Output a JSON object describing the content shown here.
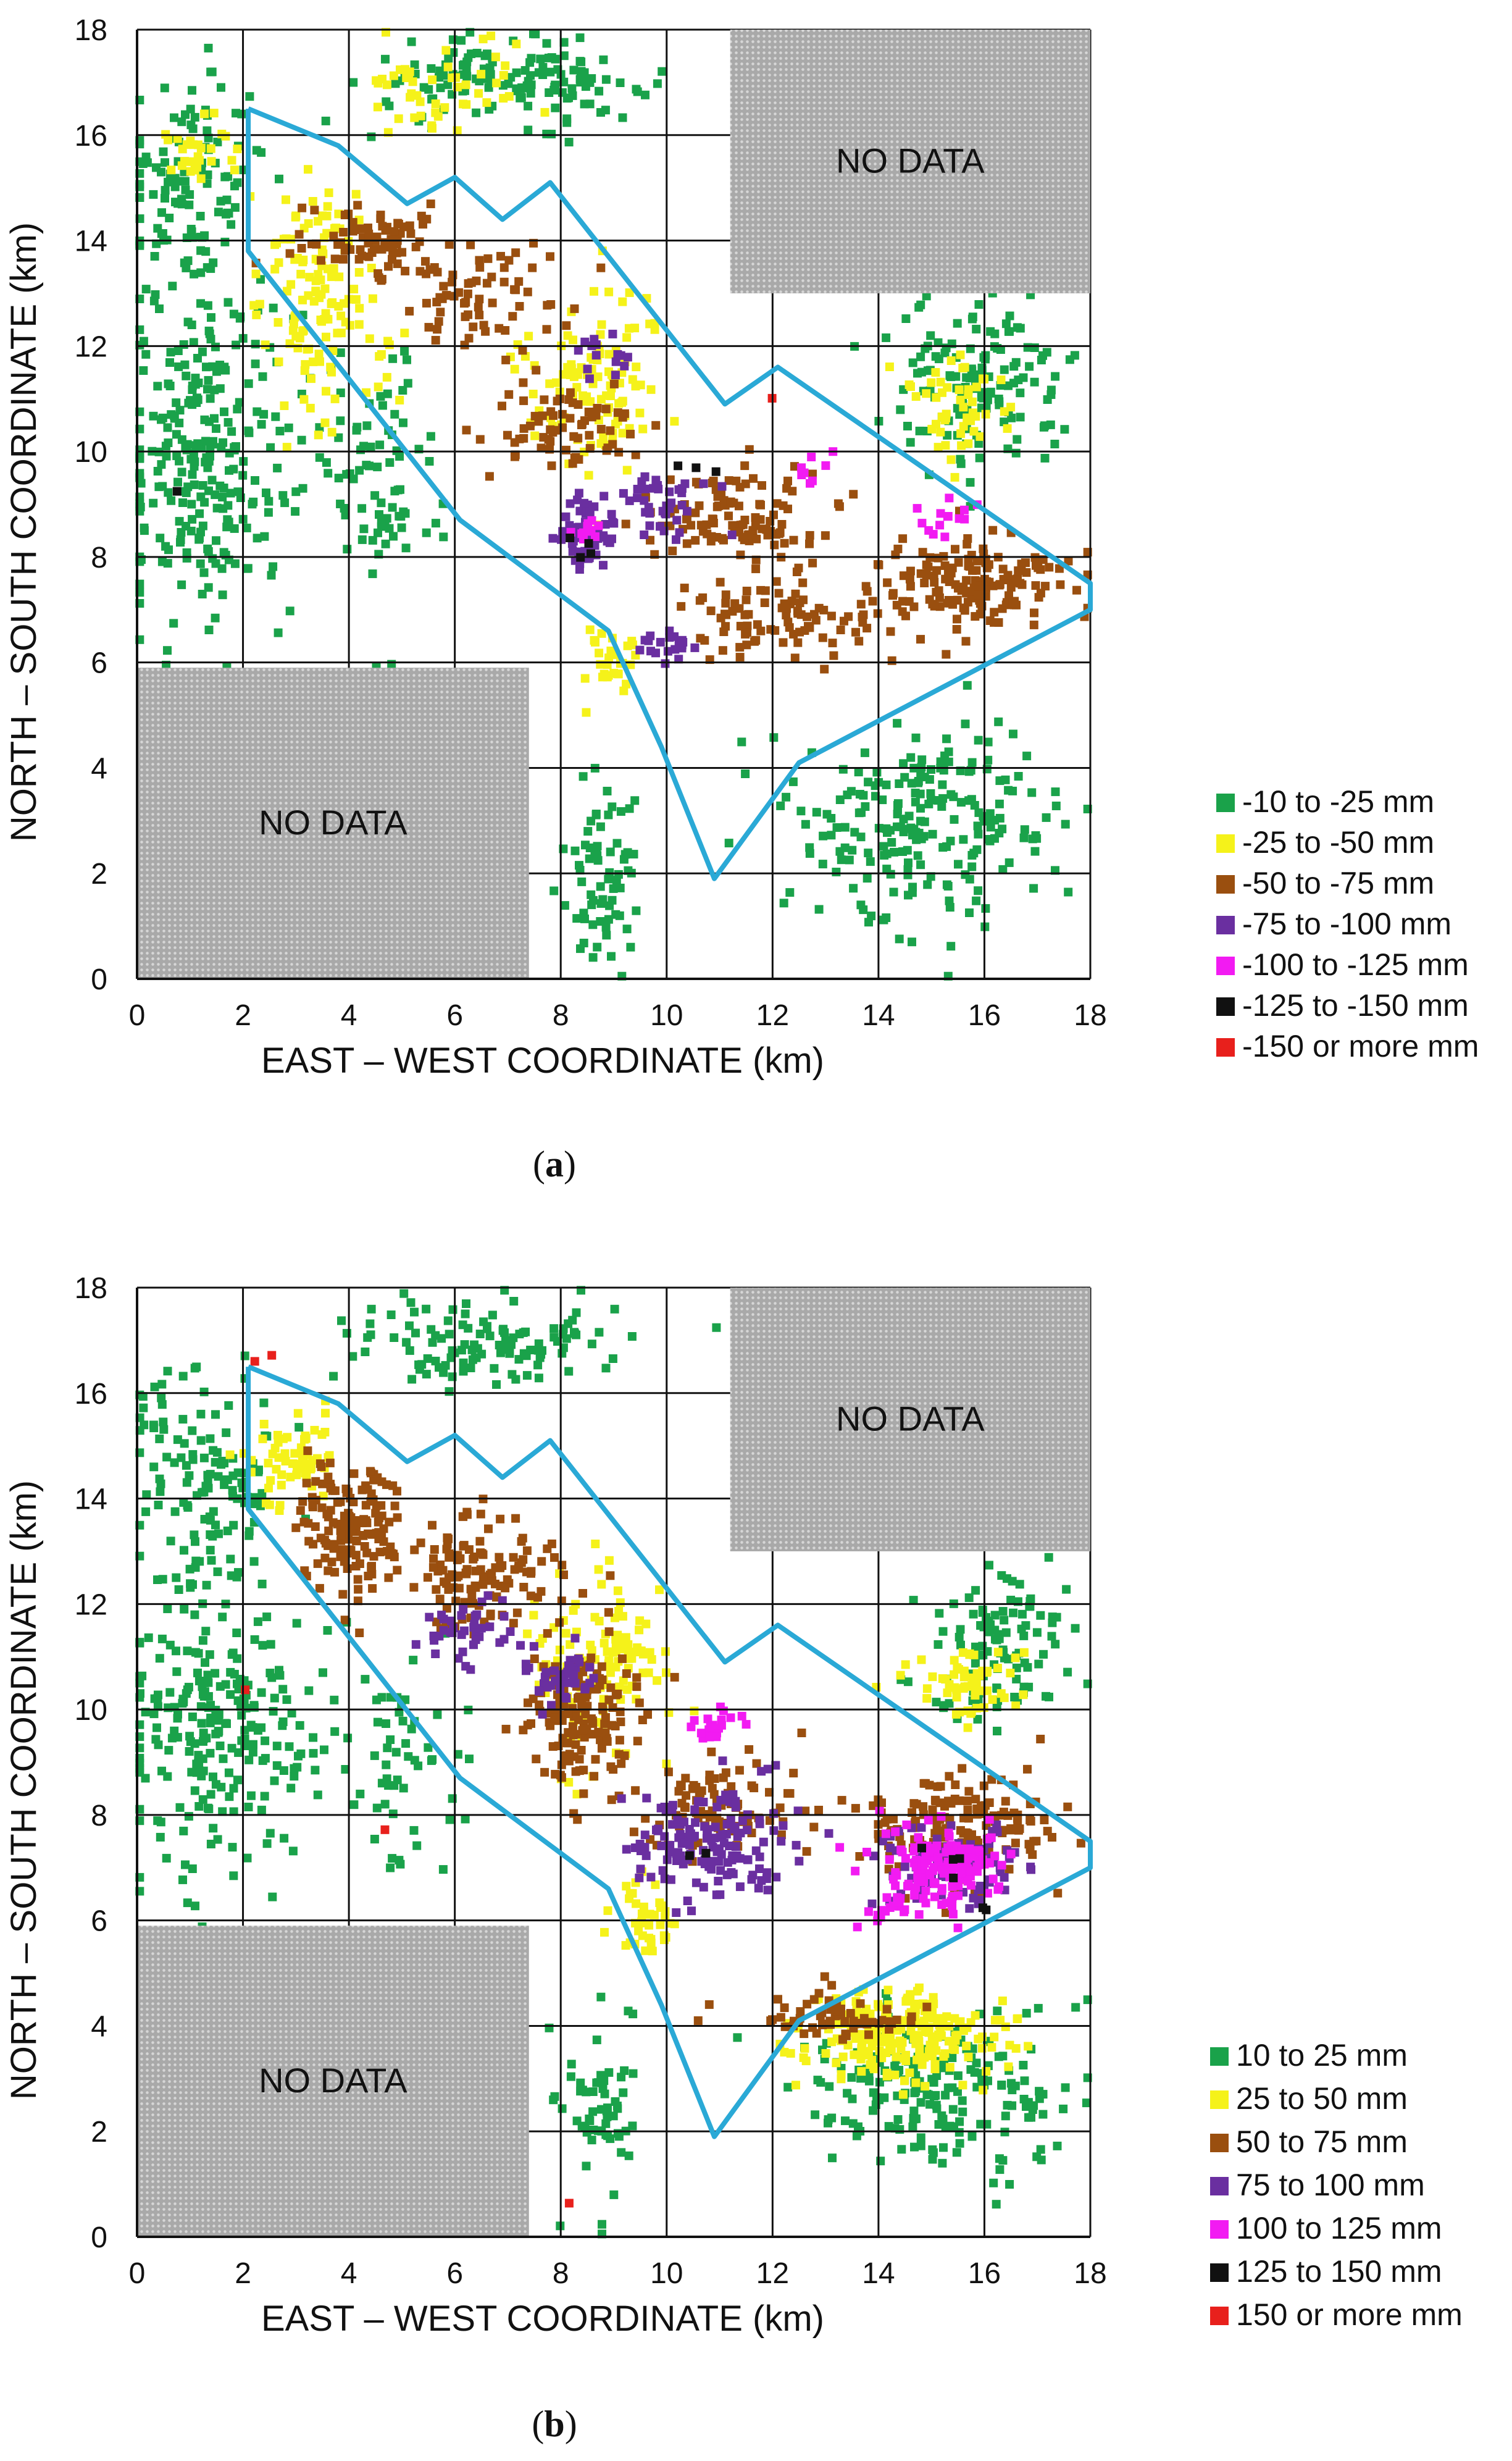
{
  "chart_data": [
    {
      "type": "scatter",
      "panel_label": "(a)",
      "panel_letter": "a",
      "xlabel": "EAST – WEST  COORDINATE  (km)",
      "ylabel": "NORTH – SOUTH  COORDINATE  (km)",
      "xlim": [
        0,
        18
      ],
      "ylim": [
        0,
        18
      ],
      "xticks": [
        "0",
        "2",
        "4",
        "6",
        "8",
        "10",
        "12",
        "14",
        "16",
        "18"
      ],
      "yticks": [
        "0",
        "2",
        "4",
        "6",
        "8",
        "10",
        "12",
        "14",
        "16",
        "18"
      ],
      "grid": true,
      "no_data_regions": [
        {
          "label": "NO  DATA",
          "x": [
            11.2,
            18
          ],
          "y": [
            13,
            18
          ]
        },
        {
          "label": "NO  DATA",
          "x": [
            0,
            7.4
          ],
          "y": [
            0,
            5.9
          ]
        }
      ],
      "boundary": [
        [
          2.1,
          16.5
        ],
        [
          3.8,
          15.8
        ],
        [
          5.1,
          14.7
        ],
        [
          6,
          15.2
        ],
        [
          6.9,
          14.4
        ],
        [
          7.8,
          15.1
        ],
        [
          11.1,
          10.9
        ],
        [
          12.1,
          11.6
        ],
        [
          18,
          7.5
        ],
        [
          18,
          7
        ],
        [
          12.5,
          4.1
        ],
        [
          10.9,
          1.9
        ],
        [
          9.9,
          4.4
        ],
        [
          8.9,
          6.6
        ],
        [
          6.1,
          8.7
        ],
        [
          2.1,
          13.8
        ],
        [
          2.1,
          16.5
        ]
      ],
      "legend": [
        {
          "label": "-10 to -25 mm",
          "color": "#1aa24a"
        },
        {
          "label": "-25 to -50 mm",
          "color": "#f5f21a"
        },
        {
          "label": "-50 to -75 mm",
          "color": "#9a4f0f"
        },
        {
          "label": "-75 to -100 mm",
          "color": "#6a2fa0"
        },
        {
          "label": "-100 to -125 mm",
          "color": "#f21bf2"
        },
        {
          "label": "-125 to -150 mm",
          "color": "#111111"
        },
        {
          "label": "-150 or more mm",
          "color": "#e8201c"
        }
      ],
      "point_clusters": [
        {
          "class": 0,
          "cx": 1,
          "cy": 15,
          "sx": 1.2,
          "sy": 1.8,
          "n": 120
        },
        {
          "class": 0,
          "cx": 7,
          "cy": 17,
          "sx": 2.2,
          "sy": 0.6,
          "n": 150
        },
        {
          "class": 0,
          "cx": 1.3,
          "cy": 10,
          "sx": 1.4,
          "sy": 2.6,
          "n": 260
        },
        {
          "class": 0,
          "cx": 4.5,
          "cy": 9.5,
          "sx": 1,
          "sy": 2,
          "n": 80
        },
        {
          "class": 0,
          "cx": 8.8,
          "cy": 2,
          "sx": 0.6,
          "sy": 1.6,
          "n": 70
        },
        {
          "class": 0,
          "cx": 15,
          "cy": 3,
          "sx": 2,
          "sy": 1.6,
          "n": 220
        },
        {
          "class": 0,
          "cx": 16,
          "cy": 11.3,
          "sx": 1.5,
          "sy": 1.3,
          "n": 140
        },
        {
          "class": 1,
          "cx": 3.5,
          "cy": 12.8,
          "sx": 1,
          "sy": 2,
          "n": 130
        },
        {
          "class": 1,
          "cx": 8.5,
          "cy": 11.5,
          "sx": 1.2,
          "sy": 1.5,
          "n": 110
        },
        {
          "class": 1,
          "cx": 6,
          "cy": 17,
          "sx": 1.5,
          "sy": 0.8,
          "n": 50
        },
        {
          "class": 1,
          "cx": 15.5,
          "cy": 10.8,
          "sx": 0.8,
          "sy": 0.8,
          "n": 50
        },
        {
          "class": 1,
          "cx": 9,
          "cy": 6,
          "sx": 0.6,
          "sy": 0.6,
          "n": 30
        },
        {
          "class": 1,
          "cx": 1.2,
          "cy": 15.7,
          "sx": 0.7,
          "sy": 0.6,
          "n": 30
        },
        {
          "class": 2,
          "cx": 4.5,
          "cy": 14,
          "sx": 1.2,
          "sy": 0.6,
          "n": 80
        },
        {
          "class": 2,
          "cx": 6.5,
          "cy": 12.8,
          "sx": 1.2,
          "sy": 0.8,
          "n": 70
        },
        {
          "class": 2,
          "cx": 8,
          "cy": 10.5,
          "sx": 1.2,
          "sy": 0.6,
          "n": 70
        },
        {
          "class": 2,
          "cx": 11.3,
          "cy": 8.8,
          "sx": 1.5,
          "sy": 0.8,
          "n": 110
        },
        {
          "class": 2,
          "cx": 12,
          "cy": 6.8,
          "sx": 1.5,
          "sy": 0.6,
          "n": 90
        },
        {
          "class": 2,
          "cx": 15.8,
          "cy": 7.5,
          "sx": 1.5,
          "sy": 0.7,
          "n": 160
        },
        {
          "class": 3,
          "cx": 8.5,
          "cy": 8.5,
          "sx": 0.5,
          "sy": 0.5,
          "n": 60
        },
        {
          "class": 3,
          "cx": 9.8,
          "cy": 9,
          "sx": 0.8,
          "sy": 0.5,
          "n": 40
        },
        {
          "class": 3,
          "cx": 10,
          "cy": 6.3,
          "sx": 0.4,
          "sy": 0.3,
          "n": 20
        },
        {
          "class": 3,
          "cx": 8.8,
          "cy": 11.8,
          "sx": 0.4,
          "sy": 0.5,
          "n": 15
        },
        {
          "class": 4,
          "cx": 8.6,
          "cy": 8.5,
          "sx": 0.3,
          "sy": 0.3,
          "n": 12
        },
        {
          "class": 4,
          "cx": 15.3,
          "cy": 8.7,
          "sx": 0.4,
          "sy": 0.3,
          "n": 14
        },
        {
          "class": 4,
          "cx": 12.8,
          "cy": 9.7,
          "sx": 0.5,
          "sy": 0.3,
          "n": 8
        },
        {
          "class": 5,
          "cx": 8.5,
          "cy": 8.2,
          "sx": 0.3,
          "sy": 0.4,
          "n": 4
        },
        {
          "class": 5,
          "cx": 10.5,
          "cy": 9.5,
          "sx": 0.5,
          "sy": 0.5,
          "n": 3
        },
        {
          "class": 5,
          "cx": 0.7,
          "cy": 9.3,
          "sx": 0.1,
          "sy": 0.1,
          "n": 1
        },
        {
          "class": 6,
          "cx": 12,
          "cy": 11,
          "sx": 0.1,
          "sy": 0.1,
          "n": 1
        }
      ]
    },
    {
      "type": "scatter",
      "panel_label": "(b)",
      "panel_letter": "b",
      "xlabel": "EAST – WEST  COORDINATE  (km)",
      "ylabel": "NORTH – SOUTH  COORDINATE  (km)",
      "xlim": [
        0,
        18
      ],
      "ylim": [
        0,
        18
      ],
      "xticks": [
        "0",
        "2",
        "4",
        "6",
        "8",
        "10",
        "12",
        "14",
        "16",
        "18"
      ],
      "yticks": [
        "0",
        "2",
        "4",
        "6",
        "8",
        "10",
        "12",
        "14",
        "16",
        "18"
      ],
      "grid": true,
      "no_data_regions": [
        {
          "label": "NO  DATA",
          "x": [
            11.2,
            18
          ],
          "y": [
            13,
            18
          ]
        },
        {
          "label": "NO  DATA",
          "x": [
            0,
            7.4
          ],
          "y": [
            0,
            5.9
          ]
        }
      ],
      "boundary": [
        [
          2.1,
          16.5
        ],
        [
          3.8,
          15.8
        ],
        [
          5.1,
          14.7
        ],
        [
          6,
          15.2
        ],
        [
          6.9,
          14.4
        ],
        [
          7.8,
          15.1
        ],
        [
          11.1,
          10.9
        ],
        [
          12.1,
          11.6
        ],
        [
          18,
          7.5
        ],
        [
          18,
          7
        ],
        [
          12.5,
          4.1
        ],
        [
          10.9,
          1.9
        ],
        [
          9.9,
          4.4
        ],
        [
          8.9,
          6.6
        ],
        [
          6.1,
          8.7
        ],
        [
          2.1,
          13.8
        ],
        [
          2.1,
          16.5
        ]
      ],
      "legend": [
        {
          "label": "10 to 25 mm",
          "color": "#1aa24a"
        },
        {
          "label": "25 to 50 mm",
          "color": "#f5f21a"
        },
        {
          "label": "50 to 75 mm",
          "color": "#9a4f0f"
        },
        {
          "label": "75 to 100 mm",
          "color": "#6a2fa0"
        },
        {
          "label": "100 to 125 mm",
          "color": "#f21bf2"
        },
        {
          "label": "125 to 150 mm",
          "color": "#111111"
        },
        {
          "label": "150 or more mm",
          "color": "#e8201c"
        }
      ],
      "point_clusters": [
        {
          "class": 0,
          "cx": 1.2,
          "cy": 14.5,
          "sx": 1.2,
          "sy": 2,
          "n": 130
        },
        {
          "class": 0,
          "cx": 6.5,
          "cy": 17,
          "sx": 2.2,
          "sy": 0.7,
          "n": 120
        },
        {
          "class": 0,
          "cx": 1.5,
          "cy": 9.5,
          "sx": 1.5,
          "sy": 2.3,
          "n": 240
        },
        {
          "class": 0,
          "cx": 5,
          "cy": 9,
          "sx": 1,
          "sy": 1.6,
          "n": 60
        },
        {
          "class": 0,
          "cx": 8.8,
          "cy": 2.3,
          "sx": 0.6,
          "sy": 1.6,
          "n": 60
        },
        {
          "class": 0,
          "cx": 15,
          "cy": 2.8,
          "sx": 2,
          "sy": 1.3,
          "n": 200
        },
        {
          "class": 0,
          "cx": 16.2,
          "cy": 11.2,
          "sx": 1.3,
          "sy": 1.2,
          "n": 110
        },
        {
          "class": 1,
          "cx": 3,
          "cy": 14.8,
          "sx": 0.8,
          "sy": 0.7,
          "n": 60
        },
        {
          "class": 1,
          "cx": 8.8,
          "cy": 10.8,
          "sx": 1,
          "sy": 1.3,
          "n": 120
        },
        {
          "class": 1,
          "cx": 14.5,
          "cy": 3.8,
          "sx": 1.6,
          "sy": 0.7,
          "n": 220
        },
        {
          "class": 1,
          "cx": 15.6,
          "cy": 10.4,
          "sx": 0.8,
          "sy": 0.6,
          "n": 60
        },
        {
          "class": 1,
          "cx": 9.6,
          "cy": 6,
          "sx": 0.6,
          "sy": 0.6,
          "n": 40
        },
        {
          "class": 2,
          "cx": 4,
          "cy": 13.5,
          "sx": 0.8,
          "sy": 1.1,
          "n": 150
        },
        {
          "class": 2,
          "cx": 6.6,
          "cy": 12.6,
          "sx": 1.2,
          "sy": 0.9,
          "n": 130
        },
        {
          "class": 2,
          "cx": 8.3,
          "cy": 9.8,
          "sx": 0.9,
          "sy": 1.2,
          "n": 150
        },
        {
          "class": 2,
          "cx": 11,
          "cy": 8.2,
          "sx": 1.2,
          "sy": 0.8,
          "n": 90
        },
        {
          "class": 2,
          "cx": 15.4,
          "cy": 7.8,
          "sx": 1.5,
          "sy": 0.9,
          "n": 170
        },
        {
          "class": 2,
          "cx": 13.2,
          "cy": 4.2,
          "sx": 1.2,
          "sy": 0.4,
          "n": 60
        },
        {
          "class": 3,
          "cx": 6.2,
          "cy": 11.5,
          "sx": 0.8,
          "sy": 0.5,
          "n": 40
        },
        {
          "class": 3,
          "cx": 8.1,
          "cy": 10.6,
          "sx": 0.7,
          "sy": 0.4,
          "n": 40
        },
        {
          "class": 3,
          "cx": 10.8,
          "cy": 7.5,
          "sx": 1.2,
          "sy": 0.9,
          "n": 150
        },
        {
          "class": 3,
          "cx": 15.5,
          "cy": 7,
          "sx": 1.2,
          "sy": 0.6,
          "n": 90
        },
        {
          "class": 4,
          "cx": 15.3,
          "cy": 7.1,
          "sx": 0.9,
          "sy": 0.6,
          "n": 150
        },
        {
          "class": 4,
          "cx": 10.9,
          "cy": 9.7,
          "sx": 0.4,
          "sy": 0.3,
          "n": 20
        },
        {
          "class": 4,
          "cx": 14.2,
          "cy": 6.2,
          "sx": 0.4,
          "sy": 0.3,
          "n": 20
        },
        {
          "class": 5,
          "cx": 10.5,
          "cy": 7.2,
          "sx": 0.3,
          "sy": 0.2,
          "n": 2
        },
        {
          "class": 5,
          "cx": 15.3,
          "cy": 7.2,
          "sx": 0.5,
          "sy": 0.3,
          "n": 4
        },
        {
          "class": 5,
          "cx": 16,
          "cy": 6.2,
          "sx": 0.2,
          "sy": 0.2,
          "n": 2
        },
        {
          "class": 6,
          "cx": 2.3,
          "cy": 16.6,
          "sx": 0.2,
          "sy": 0.2,
          "n": 2
        },
        {
          "class": 6,
          "cx": 2.1,
          "cy": 10.5,
          "sx": 0.2,
          "sy": 0.2,
          "n": 1
        },
        {
          "class": 6,
          "cx": 4.8,
          "cy": 7.7,
          "sx": 0.1,
          "sy": 0.1,
          "n": 1
        },
        {
          "class": 6,
          "cx": 8.1,
          "cy": 0.6,
          "sx": 0.1,
          "sy": 0.1,
          "n": 1
        }
      ]
    }
  ]
}
